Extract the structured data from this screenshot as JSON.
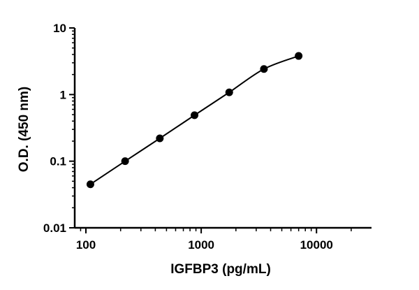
{
  "chart_data": {
    "type": "scatter",
    "title": "",
    "xlabel": "IGFBP3 (pg/mL)",
    "ylabel": "O.D. (450 nm)",
    "x_scale": "log",
    "y_scale": "log",
    "xlim": [
      80,
      30000
    ],
    "ylim": [
      0.01,
      10
    ],
    "x_ticks": [
      100,
      1000,
      10000
    ],
    "x_tick_labels": [
      "100",
      "1000",
      "10000"
    ],
    "y_ticks": [
      0.01,
      0.1,
      1,
      10
    ],
    "y_tick_labels": [
      "0.01",
      "0.1",
      "1",
      "10"
    ],
    "grid": false,
    "legend": "none",
    "series": [
      {
        "x": [
          109.4,
          218.8,
          437.5,
          875,
          1750,
          3500,
          7000
        ],
        "y": [
          0.045,
          0.1,
          0.22,
          0.49,
          1.08,
          2.42,
          3.8
        ]
      }
    ],
    "fit_curve": "smooth"
  }
}
